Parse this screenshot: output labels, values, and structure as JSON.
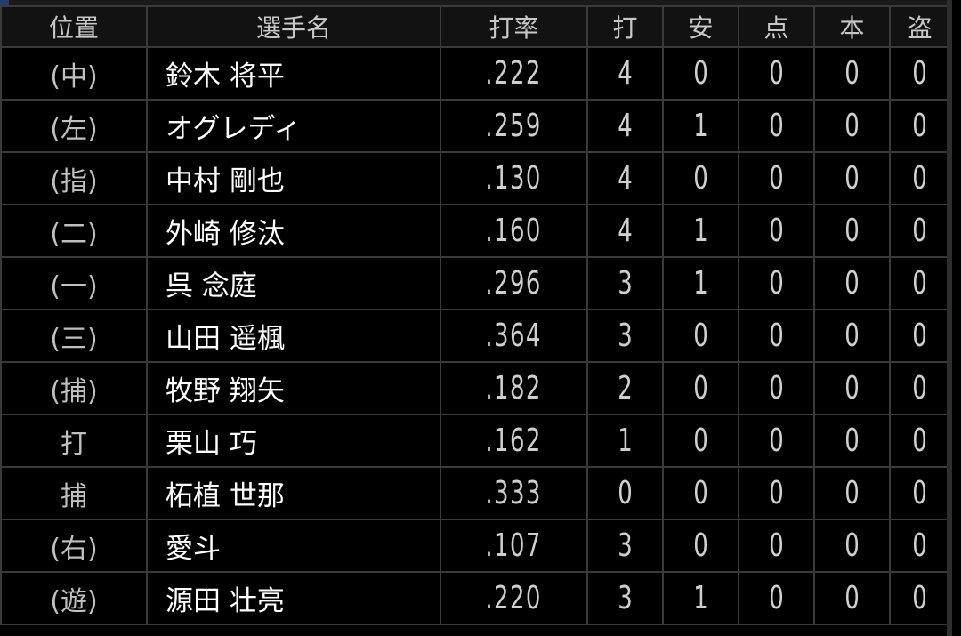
{
  "headers": [
    "位置",
    "選手名",
    "打率",
    "打",
    "安",
    "点",
    "本",
    "盗"
  ],
  "rows": [
    {
      "pos": "(中)",
      "name": "鈴木 将平",
      "avg": ".222",
      "ab": "4",
      "h": "0",
      "rbi": "0",
      "hr": "0",
      "sb": "0"
    },
    {
      "pos": "(左)",
      "name": "オグレディ",
      "avg": ".259",
      "ab": "4",
      "h": "1",
      "rbi": "0",
      "hr": "0",
      "sb": "0"
    },
    {
      "pos": "(指)",
      "name": "中村 剛也",
      "avg": ".130",
      "ab": "4",
      "h": "0",
      "rbi": "0",
      "hr": "0",
      "sb": "0"
    },
    {
      "pos": "(二)",
      "name": "外崎 修汰",
      "avg": ".160",
      "ab": "4",
      "h": "1",
      "rbi": "0",
      "hr": "0",
      "sb": "0"
    },
    {
      "pos": "(一)",
      "name": "呉 念庭",
      "avg": ".296",
      "ab": "3",
      "h": "1",
      "rbi": "0",
      "hr": "0",
      "sb": "0"
    },
    {
      "pos": "(三)",
      "name": "山田 遥楓",
      "avg": ".364",
      "ab": "3",
      "h": "0",
      "rbi": "0",
      "hr": "0",
      "sb": "0"
    },
    {
      "pos": "(捕)",
      "name": "牧野 翔矢",
      "avg": ".182",
      "ab": "2",
      "h": "0",
      "rbi": "0",
      "hr": "0",
      "sb": "0"
    },
    {
      "pos": "打",
      "name": "栗山 巧",
      "avg": ".162",
      "ab": "1",
      "h": "0",
      "rbi": "0",
      "hr": "0",
      "sb": "0"
    },
    {
      "pos": "捕",
      "name": "柘植 世那",
      "avg": ".333",
      "ab": "0",
      "h": "0",
      "rbi": "0",
      "hr": "0",
      "sb": "0"
    },
    {
      "pos": "(右)",
      "name": "愛斗",
      "avg": ".107",
      "ab": "3",
      "h": "0",
      "rbi": "0",
      "hr": "0",
      "sb": "0"
    },
    {
      "pos": "(遊)",
      "name": "源田 壮亮",
      "avg": ".220",
      "ab": "3",
      "h": "1",
      "rbi": "0",
      "hr": "0",
      "sb": "0"
    }
  ]
}
